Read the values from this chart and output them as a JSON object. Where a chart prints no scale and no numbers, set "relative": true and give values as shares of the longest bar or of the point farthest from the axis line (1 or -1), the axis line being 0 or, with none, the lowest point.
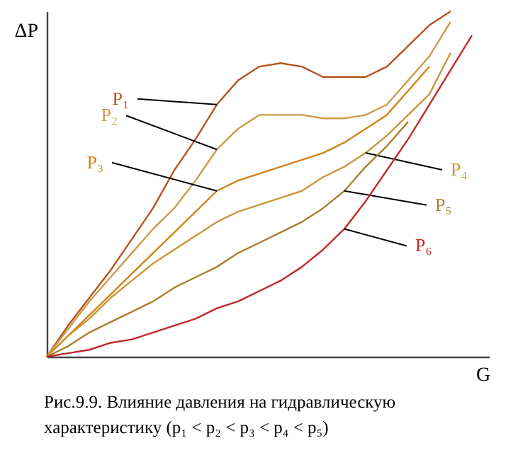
{
  "chart_data": {
    "type": "line",
    "relative": true,
    "xlabel": "G",
    "ylabel": "ΔP",
    "tick_labels": false,
    "grid": false,
    "marker": "none",
    "line_style": "solid",
    "categories": [
      null,
      null,
      null,
      null,
      null,
      null,
      null,
      null,
      null,
      null,
      null,
      null,
      null,
      null,
      null,
      null,
      null,
      null,
      null,
      null,
      null
    ],
    "series": [
      {
        "name": "P₁",
        "color": "#b5541c",
        "values": [
          0,
          0.09,
          0.17,
          0.25,
          0.34,
          0.43,
          0.54,
          0.63,
          0.73,
          0.8,
          0.84,
          0.85,
          0.84,
          0.81,
          0.81,
          0.81,
          0.84,
          0.9,
          0.96,
          1.0,
          null
        ]
      },
      {
        "name": "P₂",
        "color": "#cc9a48",
        "values": [
          0,
          0.08,
          0.16,
          0.23,
          0.3,
          0.37,
          0.43,
          0.51,
          0.6,
          0.66,
          0.7,
          0.7,
          0.7,
          0.69,
          0.69,
          0.7,
          0.73,
          0.8,
          0.87,
          0.97,
          null
        ]
      },
      {
        "name": "P₃",
        "color": "#d08418",
        "values": [
          0,
          0.06,
          0.12,
          0.18,
          0.24,
          0.3,
          0.36,
          0.42,
          0.48,
          0.51,
          0.53,
          0.55,
          0.57,
          0.59,
          0.62,
          0.66,
          0.7,
          0.77,
          0.84,
          null,
          null
        ]
      },
      {
        "name": "P₄",
        "color": "#c8963c",
        "values": [
          0,
          0.06,
          0.11,
          0.17,
          0.22,
          0.27,
          0.31,
          0.35,
          0.39,
          0.42,
          0.44,
          0.46,
          0.48,
          0.52,
          0.55,
          0.59,
          0.64,
          0.7,
          0.76,
          0.88,
          null
        ]
      },
      {
        "name": "P₅",
        "color": "#a8802c",
        "values": [
          0,
          0.03,
          0.07,
          0.1,
          0.13,
          0.16,
          0.2,
          0.23,
          0.26,
          0.3,
          0.33,
          0.36,
          0.39,
          0.43,
          0.48,
          0.55,
          0.61,
          0.68,
          null,
          null,
          null
        ]
      },
      {
        "name": "P₆",
        "color": "#c0282a",
        "values": [
          0,
          0.01,
          0.02,
          0.04,
          0.05,
          0.07,
          0.09,
          0.11,
          0.14,
          0.16,
          0.19,
          0.22,
          0.26,
          0.31,
          0.37,
          0.45,
          0.54,
          0.63,
          0.73,
          0.83,
          0.93
        ]
      }
    ],
    "annotations": [
      "Рис.9.9. Влияние давления на гидравлическую характеристику (p₁ < p₂ < p₃ < p₄ < p₅)"
    ]
  }
}
